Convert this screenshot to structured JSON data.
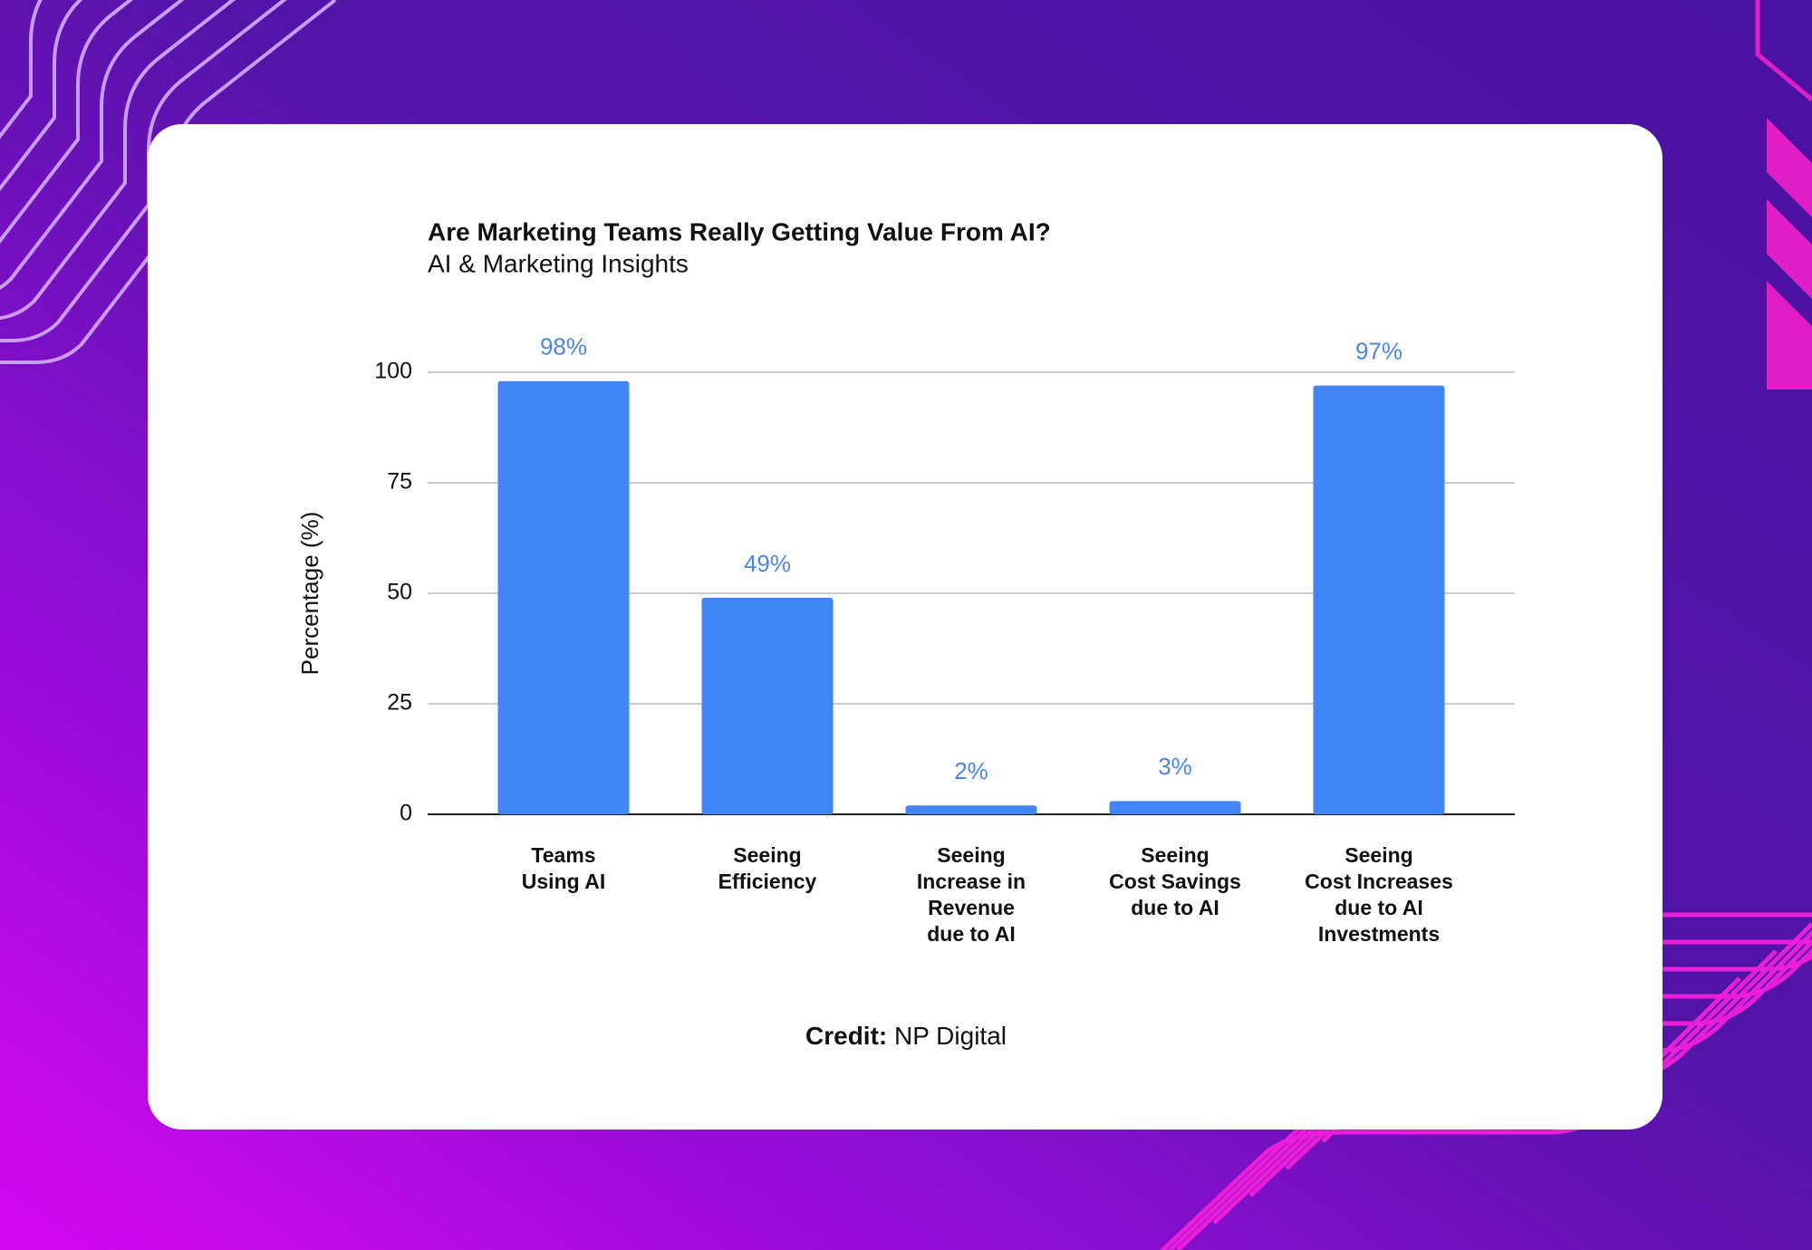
{
  "chart_data": {
    "type": "bar",
    "title": "Are Marketing Teams Really Getting Value From AI?",
    "subtitle": "AI & Marketing Insights",
    "y_label": "Percentage (%)",
    "categories": [
      "Teams\nUsing AI",
      "Seeing\nEfficiency",
      "Seeing\nIncrease in\nRevenue\ndue to AI",
      "Seeing\nCost Savings\ndue to AI",
      "Seeing\nCost Increases\ndue to AI\nInvestments"
    ],
    "values": [
      98,
      49,
      2,
      3,
      97
    ],
    "value_labels": [
      "98%",
      "49%",
      "2%",
      "3%",
      "97%"
    ],
    "color": "#4285f4",
    "ylim": [
      0,
      100
    ],
    "yticks": [
      0,
      25,
      50,
      75,
      100
    ],
    "grid": true,
    "credit": {
      "label": "Credit:",
      "text": "NP Digital"
    }
  }
}
